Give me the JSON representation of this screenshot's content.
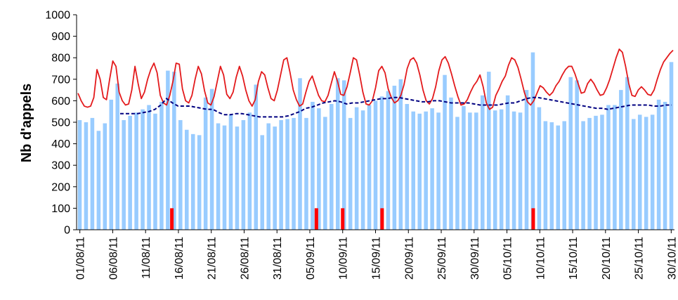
{
  "chart_data": {
    "type": "bar",
    "title": "",
    "xlabel": "",
    "ylabel": "Nb d'appels",
    "ylim": [
      0,
      1000
    ],
    "yticks": [
      0,
      100,
      200,
      300,
      400,
      500,
      600,
      700,
      800,
      900,
      1000
    ],
    "grid": false,
    "legend": "none",
    "x_tick_labels": [
      "01/08/11",
      "06/08/11",
      "11/08/11",
      "16/08/11",
      "21/08/11",
      "26/08/11",
      "31/08/11",
      "05/09/11",
      "10/09/11",
      "15/09/11",
      "20/09/11",
      "25/09/11",
      "30/09/11",
      "05/10/11",
      "10/10/11",
      "15/10/11",
      "20/10/11",
      "25/10/11",
      "30/10/11"
    ],
    "x_start": "01/08/11",
    "x_end": "30/10/11",
    "colors": {
      "bars": "#99ccff",
      "upper_line": "#e31a1c",
      "moving_average": "#000080",
      "markers": "#ff0000"
    },
    "series": [
      {
        "kind": "bar",
        "values": [
          510,
          500,
          520,
          460,
          495,
          605,
          680,
          510,
          530,
          545,
          560,
          580,
          540,
          595,
          740,
          735,
          510,
          465,
          445,
          440,
          615,
          655,
          495,
          485,
          535,
          480,
          510,
          545,
          675,
          440,
          495,
          480,
          510,
          515,
          520,
          705,
          520,
          595,
          565,
          525,
          585,
          705,
          695,
          520,
          570,
          555,
          580,
          600,
          620,
          645,
          670,
          700,
          585,
          550,
          540,
          550,
          565,
          545,
          720,
          615,
          525,
          575,
          545,
          545,
          625,
          735,
          555,
          560,
          625,
          550,
          545,
          650,
          825,
          570,
          505,
          500,
          485,
          505,
          710,
          695,
          505,
          520,
          530,
          535,
          580,
          580,
          650,
          710,
          515,
          535,
          525,
          535,
          605,
          595,
          780
        ]
      },
      {
        "kind": "line",
        "values": [
          635,
          600,
          575,
          570,
          575,
          615,
          745,
          700,
          615,
          605,
          700,
          785,
          760,
          640,
          600,
          580,
          585,
          650,
          760,
          680,
          610,
          640,
          700,
          745,
          775,
          730,
          625,
          590,
          580,
          625,
          690,
          775,
          770,
          655,
          600,
          590,
          625,
          700,
          760,
          725,
          645,
          590,
          580,
          620,
          690,
          760,
          720,
          630,
          610,
          640,
          710,
          760,
          715,
          650,
          600,
          575,
          605,
          690,
          735,
          720,
          660,
          610,
          600,
          650,
          720,
          790,
          800,
          730,
          650,
          605,
          575,
          585,
          640,
          690,
          715,
          670,
          625,
          600,
          595,
          625,
          680,
          735,
          690,
          630,
          625,
          665,
          730,
          800,
          790,
          720,
          640,
          585,
          580,
          600,
          660,
          740,
          760,
          730,
          655,
          615,
          590,
          600,
          625,
          675,
          750,
          790,
          800,
          775,
          720,
          650,
          600,
          585,
          610,
          665,
          740,
          790,
          805,
          775,
          725,
          670,
          620,
          580,
          585,
          605,
          640,
          670,
          690,
          720,
          665,
          590,
          560,
          570,
          625,
          655,
          690,
          715,
          765,
          800,
          790,
          755,
          700,
          640,
          595,
          580,
          600,
          635,
          670,
          660,
          640,
          625,
          640,
          670,
          690,
          720,
          745,
          760,
          760,
          725,
          680,
          635,
          640,
          680,
          700,
          680,
          650,
          625,
          630,
          660,
          700,
          750,
          800,
          840,
          825,
          760,
          680,
          625,
          620,
          650,
          665,
          650,
          630,
          625,
          650,
          700,
          745,
          780,
          800,
          820,
          835
        ]
      },
      {
        "kind": "dashed-line",
        "values": [
          null,
          null,
          null,
          null,
          null,
          null,
          null,
          540,
          540,
          540,
          540,
          545,
          550,
          560,
          580,
          610,
          590,
          575,
          575,
          575,
          570,
          565,
          560,
          560,
          545,
          535,
          535,
          540,
          540,
          535,
          530,
          525,
          525,
          525,
          525,
          525,
          530,
          540,
          550,
          565,
          570,
          580,
          590,
          595,
          600,
          595,
          585,
          590,
          590,
          595,
          600,
          605,
          610,
          610,
          615,
          615,
          610,
          605,
          600,
          595,
          595,
          600,
          600,
          595,
          590,
          590,
          590,
          590,
          585,
          580,
          580,
          580,
          580,
          585,
          590,
          590,
          600,
          610,
          615,
          615,
          610,
          605,
          600,
          595,
          590,
          585,
          580,
          575,
          570,
          565,
          565,
          560,
          565,
          570,
          575,
          580,
          580,
          580,
          580,
          575,
          575,
          580,
          580
        ]
      }
    ],
    "markers": {
      "value": 100,
      "positions": [
        "15/08/11",
        "06/09/11",
        "10/09/11",
        "16/09/11",
        "09/10/11"
      ]
    }
  }
}
